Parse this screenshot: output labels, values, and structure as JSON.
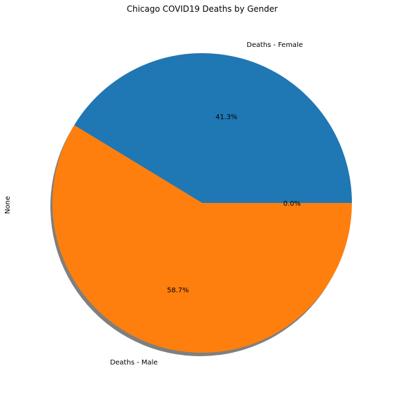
{
  "chart_data": {
    "type": "pie",
    "title": "Chicago COVID19 Deaths by Gender",
    "ylabel": "None",
    "categories": [
      "Deaths - Female",
      "Deaths - Male",
      ""
    ],
    "values": [
      41.3,
      58.7,
      0.0
    ],
    "percent_labels": [
      "41.3%",
      "58.7%",
      "0.0%"
    ],
    "colors": [
      "#1f77b4",
      "#ff7f0e",
      "#2ca02c"
    ],
    "shadow": true,
    "start_angle_deg": 0,
    "direction": "counterclockwise"
  }
}
